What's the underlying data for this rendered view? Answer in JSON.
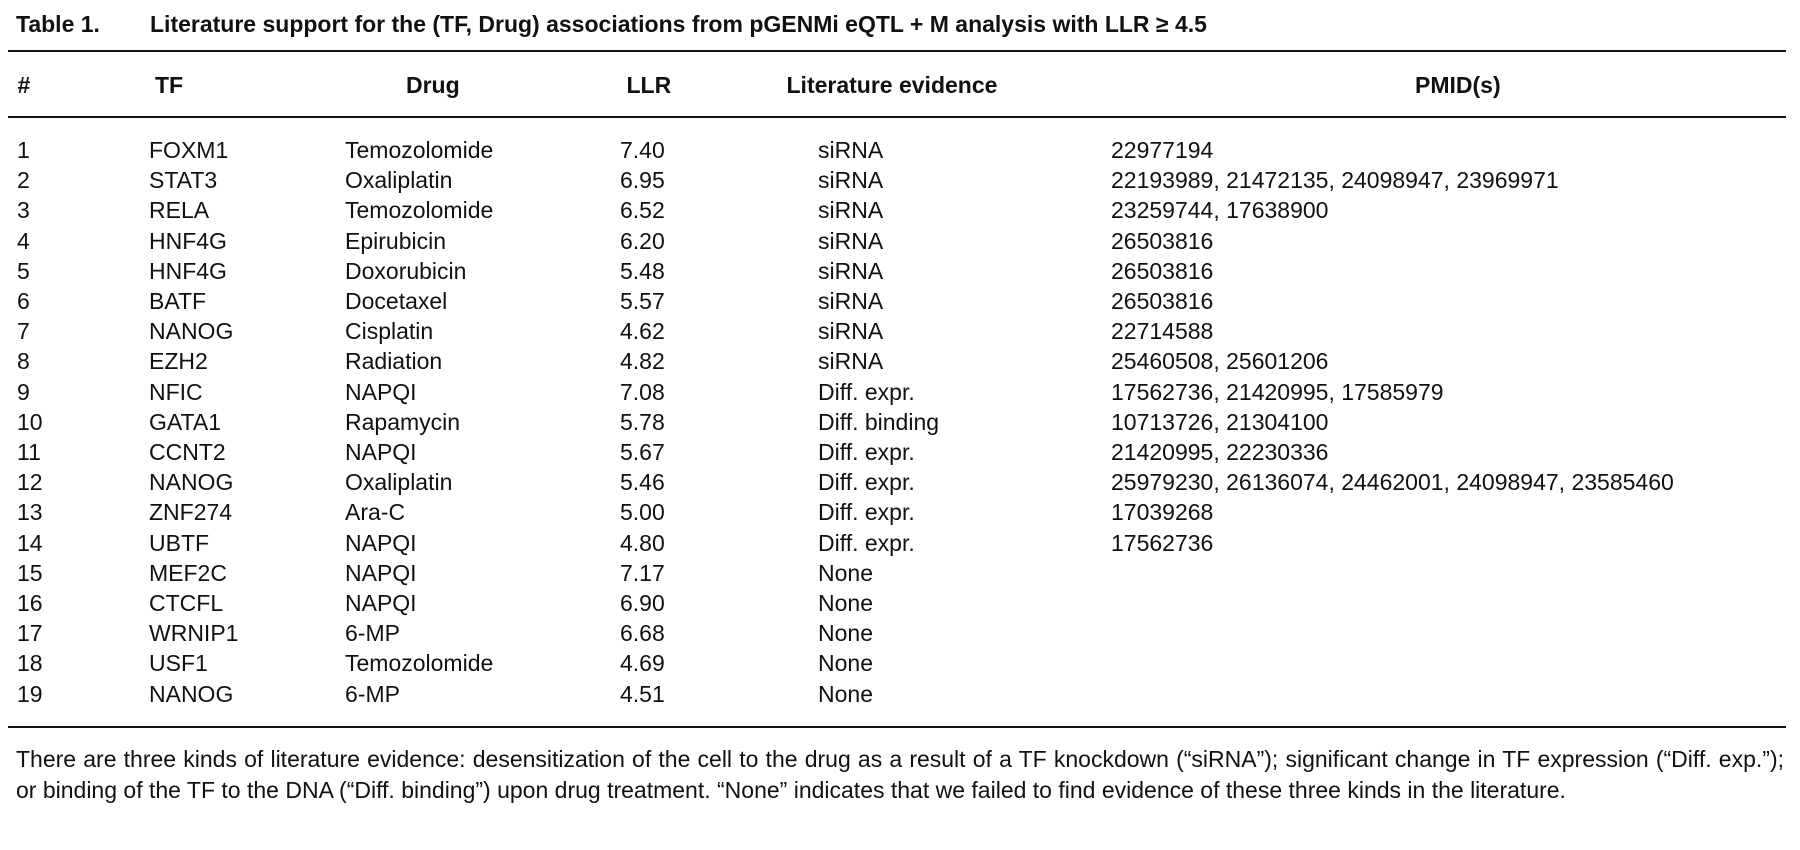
{
  "table": {
    "label": "Table 1.",
    "title": "Literature support for the (TF, Drug) associations from pGENMi eQTL + M analysis with LLR ≥ 4.5",
    "headers": [
      "#",
      "TF",
      "Drug",
      "LLR",
      "Literature evidence",
      "PMID(s)"
    ],
    "rows": [
      [
        "1",
        "FOXM1",
        "Temozolomide",
        "7.40",
        "siRNA",
        "22977194"
      ],
      [
        "2",
        "STAT3",
        "Oxaliplatin",
        "6.95",
        "siRNA",
        "22193989, 21472135, 24098947, 23969971"
      ],
      [
        "3",
        "RELA",
        "Temozolomide",
        "6.52",
        "siRNA",
        "23259744, 17638900"
      ],
      [
        "4",
        "HNF4G",
        "Epirubicin",
        "6.20",
        "siRNA",
        "26503816"
      ],
      [
        "5",
        "HNF4G",
        "Doxorubicin",
        "5.48",
        "siRNA",
        "26503816"
      ],
      [
        "6",
        "BATF",
        "Docetaxel",
        "5.57",
        "siRNA",
        "26503816"
      ],
      [
        "7",
        "NANOG",
        "Cisplatin",
        "4.62",
        "siRNA",
        "22714588"
      ],
      [
        "8",
        "EZH2",
        "Radiation",
        "4.82",
        "siRNA",
        "25460508, 25601206"
      ],
      [
        "9",
        "NFIC",
        "NAPQI",
        "7.08",
        "Diff. expr.",
        "17562736, 21420995, 17585979"
      ],
      [
        "10",
        "GATA1",
        "Rapamycin",
        "5.78",
        "Diff. binding",
        "10713726, 21304100"
      ],
      [
        "11",
        "CCNT2",
        "NAPQI",
        "5.67",
        "Diff. expr.",
        "21420995, 22230336"
      ],
      [
        "12",
        "NANOG",
        "Oxaliplatin",
        "5.46",
        "Diff. expr.",
        "25979230, 26136074, 24462001, 24098947, 23585460"
      ],
      [
        "13",
        "ZNF274",
        "Ara-C",
        "5.00",
        "Diff. expr.",
        "17039268"
      ],
      [
        "14",
        "UBTF",
        "NAPQI",
        "4.80",
        "Diff. expr.",
        "17562736"
      ],
      [
        "15",
        "MEF2C",
        "NAPQI",
        "7.17",
        "None",
        null
      ],
      [
        "16",
        "CTCFL",
        "NAPQI",
        "6.90",
        "None",
        null
      ],
      [
        "17",
        "WRNIP1",
        "6-MP",
        "6.68",
        "None",
        null
      ],
      [
        "18",
        "USF1",
        "Temozolomide",
        "4.69",
        "None",
        null
      ],
      [
        "19",
        "NANOG",
        "6-MP",
        "4.51",
        "None",
        null
      ]
    ],
    "footnote": "There are three kinds of literature evidence: desensitization of the cell to the drug as a result of a TF knockdown (“siRNA”); significant change in TF expression (“Diff. exp.”); or binding of the TF to the DNA (“Diff. binding”) upon drug treatment. “None” indicates that we failed to find evidence of these three kinds in the literature."
  }
}
